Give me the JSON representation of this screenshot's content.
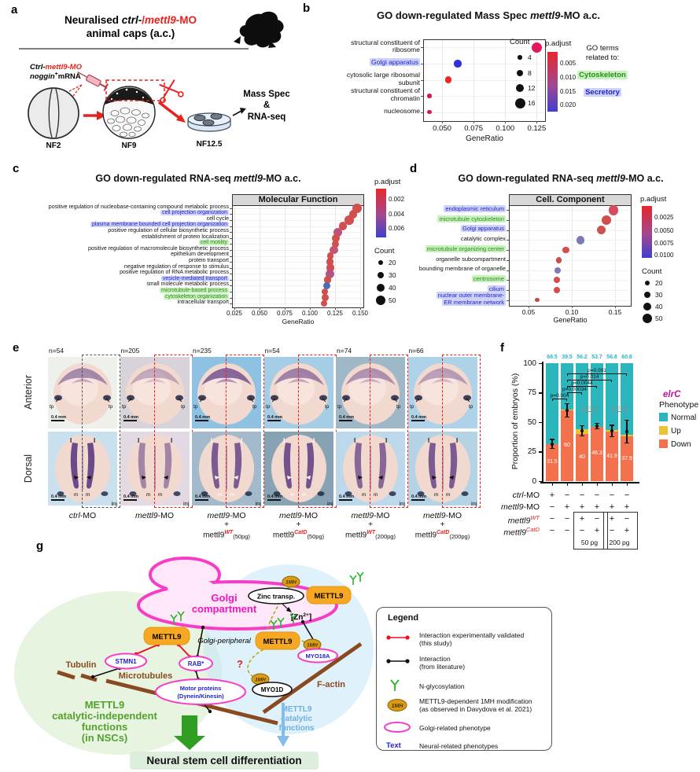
{
  "panel_labels": {
    "a": "a",
    "b": "b",
    "c": "c",
    "d": "d",
    "e": "e",
    "f": "f",
    "g": "g"
  },
  "panel_a": {
    "t1a": "Neuralised ",
    "t1b": "ctrl-",
    "t1c": "/",
    "t1d": "mettl9",
    "t1e": "-MO",
    "t2": "animal caps (a.c.)",
    "inj1": "Ctrl-",
    "inj2": "mettl9-MO",
    "nog1": "noggin",
    "nog_plus": "+",
    "nog2": "mRNA",
    "nf2": "NF2",
    "nf9": "NF9",
    "nf125": "NF12.5",
    "out1": "Mass Spec",
    "out2": "&",
    "out3": "RNA-seq"
  },
  "panel_e": {
    "row_labels": [
      "Anterior",
      "Dorsal"
    ],
    "scale_label": "0.4 mm",
    "inj_label": "inj",
    "tp_label": "tp",
    "l_label": "l",
    "m_label": "m",
    "columns": [
      {
        "n": "n=54",
        "line1_gene": "ctrl",
        "line1_rest": "-MO",
        "line2": "",
        "gene3": "",
        "sup3": "",
        "dose3": ""
      },
      {
        "n": "n=205",
        "line1_gene": "mettl9",
        "line1_rest": "-MO",
        "line2": "",
        "gene3": "",
        "sup3": "",
        "dose3": ""
      },
      {
        "n": "n=235",
        "line1_gene": "mettl9",
        "line1_rest": "-MO",
        "line2": "+",
        "gene3": "mettl9",
        "sup3": "WT",
        "dose3": "(50pg)"
      },
      {
        "n": "n=54",
        "line1_gene": "mettl9",
        "line1_rest": "-MO",
        "line2": "+",
        "gene3": "mettl9",
        "sup3": "CatD",
        "dose3": "(50pg)"
      },
      {
        "n": "n=74",
        "line1_gene": "mettl9",
        "line1_rest": "-MO",
        "line2": "+",
        "gene3": "mettl9",
        "sup3": "WT",
        "dose3": "(200pg)"
      },
      {
        "n": "n=66",
        "line1_gene": "mettl9",
        "line1_rest": "-MO",
        "line2": "+",
        "gene3": "mettl9",
        "sup3": "CatD",
        "dose3": "(200pg)"
      }
    ]
  },
  "panel_g": {
    "golgi1": "Golgi",
    "golgi2": "compartment",
    "zinc": "Zinc transp.",
    "zn_pre": "[Zn",
    "zn_sup": "2+",
    "zn_post": "]",
    "mettl9": "METTL9",
    "m1h": "1MH",
    "golgi_peripheral": "Golgi-peripheral",
    "stmn1": "STMN1",
    "rab": "RAB*",
    "motor1": "Motor proteins",
    "motor2": "(Dynein/Kinesin)",
    "myo18a": "MYO18A",
    "myo1d": "MYO1D",
    "tubulin": "Tubulin",
    "microtubules": "Microtubules",
    "factin": "F-actin",
    "q": "?",
    "green1": "METTL9",
    "green2": "catalytic-independent",
    "green3": "functions",
    "green4": "(in NSCs)",
    "blue1": "METTL9",
    "blue2": "catalytic",
    "blue3": "functions",
    "banner": "Neural stem cell differentiation"
  },
  "legend_box": {
    "title": "Legend",
    "item1a": "Interaction experimentally validated",
    "item1b": "(this study)",
    "item2a": "Interaction",
    "item2b": "(from literature)",
    "item3": "N-glycosylation",
    "item4a": "METTL9-dependent 1MH modification",
    "item4b": "(as observed in Davydova et al. 2021)",
    "item5": "Golgi-related phenotype",
    "item6_label": "Text",
    "item6": "Neural-related phenotypes"
  },
  "chart_data": [
    {
      "id": "b",
      "type": "scatter",
      "title_pre": "GO down-regulated Mass Spec ",
      "title_gene": "mettl9",
      "title_post": "-MO a.c.",
      "xlabel": "GeneRatio",
      "xticks": [
        "0.050",
        "0.075",
        "0.100",
        "0.125"
      ],
      "xtick_values": [
        0.05,
        0.075,
        0.1,
        0.125
      ],
      "xlim": [
        0.035,
        0.131
      ],
      "points": [
        {
          "lines": [
            "structural constituent of",
            "ribosome"
          ],
          "hl": "",
          "x": 0.125,
          "count": 16,
          "color": "#e0185e"
        },
        {
          "lines": [
            "Golgi apparatus"
          ],
          "hl": "blue",
          "x": 0.0625,
          "count": 10,
          "color": "#3232d8"
        },
        {
          "lines": [
            "cytosolic large ribosomal",
            "subunit"
          ],
          "hl": "",
          "x": 0.055,
          "count": 9,
          "color": "#ee2626"
        },
        {
          "lines": [
            "structural constituent of",
            "chromatin"
          ],
          "hl": "",
          "x": 0.04,
          "count": 4,
          "color": "#d6155f"
        },
        {
          "lines": [
            "nucleosome"
          ],
          "hl": "",
          "x": 0.04,
          "count": 4,
          "color": "#d6155f"
        }
      ],
      "count_legend": {
        "title": "Count",
        "values": [
          "4",
          "8",
          "12",
          "16"
        ],
        "sizes": [
          4,
          8,
          12,
          16
        ]
      },
      "p_legend": {
        "title": "p.adjust",
        "labels": [
          "0.005",
          "0.010",
          "0.015",
          "0.020"
        ]
      },
      "note": {
        "line1": "GO terms",
        "line2": "related to:",
        "badges": [
          {
            "label": "Cytoskeleton",
            "type": "green"
          },
          {
            "label": "Secretory",
            "type": "blue"
          }
        ]
      }
    },
    {
      "id": "c",
      "type": "scatter",
      "facet": "Molecular Function",
      "title_pre": "GO down-regulated RNA-seq ",
      "title_gene": "mettl9",
      "title_post": "-MO a.c.",
      "xlabel": "GeneRatio",
      "xticks": [
        "0.025",
        "0.050",
        "0.075",
        "0.100",
        "0.125",
        "0.150"
      ],
      "xtick_values": [
        0.025,
        0.05,
        0.075,
        0.1,
        0.125,
        0.15
      ],
      "xlim": [
        0.022,
        0.155
      ],
      "points": [
        {
          "lines": [
            "positive regulation of nucleobase-containing compound metabolic process"
          ],
          "hl": "",
          "x": 0.147,
          "count": 50,
          "color": "#d14f4f"
        },
        {
          "lines": [
            "cell projection organization"
          ],
          "hl": "blue",
          "x": 0.143,
          "count": 42,
          "color": "#d14f4f"
        },
        {
          "lines": [
            "cell cycle"
          ],
          "hl": "",
          "x": 0.139,
          "count": 45,
          "color": "#d14f4f"
        },
        {
          "lines": [
            "plasma membrane bounded cell projection organization"
          ],
          "hl": "blue",
          "x": 0.133,
          "count": 40,
          "color": "#d14f4f"
        },
        {
          "lines": [
            "positive regulation of cellular biosynthetic process"
          ],
          "hl": "",
          "x": 0.128,
          "count": 42,
          "color": "#bd5178"
        },
        {
          "lines": [
            "establishment of protein localization"
          ],
          "hl": "",
          "x": 0.126,
          "count": 36,
          "color": "#d14f4f"
        },
        {
          "lines": [
            "cell motility"
          ],
          "hl": "green",
          "x": 0.1255,
          "count": 32,
          "color": "#d14f4f"
        },
        {
          "lines": [
            "positive regulation of macromolecule biosynthetic process"
          ],
          "hl": "",
          "x": 0.124,
          "count": 40,
          "color": "#c35573"
        },
        {
          "lines": [
            "epithelium development"
          ],
          "hl": "",
          "x": 0.1205,
          "count": 30,
          "color": "#d14f4f"
        },
        {
          "lines": [
            "protein transport"
          ],
          "hl": "",
          "x": 0.12,
          "count": 34,
          "color": "#d14f4f"
        },
        {
          "lines": [
            "negative regulation of response to stimulus"
          ],
          "hl": "",
          "x": 0.1205,
          "count": 40,
          "color": "#d14f4f"
        },
        {
          "lines": [
            "positive regulation of RNA metabolic process"
          ],
          "hl": "",
          "x": 0.12,
          "count": 42,
          "color": "#b15587"
        },
        {
          "lines": [
            "vesicle-mediated transport"
          ],
          "hl": "blue",
          "x": 0.1175,
          "count": 36,
          "color": "#d14f4f"
        },
        {
          "lines": [
            "small molecule metabolic process"
          ],
          "hl": "",
          "x": 0.117,
          "count": 34,
          "color": "#4a6db8"
        },
        {
          "lines": [
            "microtubule-based process"
          ],
          "hl": "green",
          "x": 0.115,
          "count": 26,
          "color": "#d14f4f"
        },
        {
          "lines": [
            "cytoskeleton organization"
          ],
          "hl": "green",
          "x": 0.115,
          "count": 32,
          "color": "#d14f4f"
        },
        {
          "lines": [
            "intracellular transport"
          ],
          "hl": "",
          "x": 0.114,
          "count": 30,
          "color": "#d14f4f"
        }
      ],
      "count_legend": {
        "title": "Count",
        "values": [
          "20",
          "30",
          "40",
          "50"
        ],
        "sizes": [
          20,
          30,
          40,
          50
        ]
      },
      "p_legend": {
        "title": "p.adjust",
        "labels": [
          "0.002",
          "0.004",
          "0.006"
        ]
      }
    },
    {
      "id": "d",
      "type": "scatter",
      "facet": "Cell. Component",
      "title_pre": "GO down-regulated RNA-seq ",
      "title_gene": "mettl9",
      "title_post": "-MO a.c.",
      "xlabel": "GeneRatio",
      "xticks": [
        "0.05",
        "0.10",
        "0.15"
      ],
      "xtick_values": [
        0.05,
        0.1,
        0.15
      ],
      "xlim": [
        0.03,
        0.165
      ],
      "points": [
        {
          "lines": [
            "endoplasmic reticulum"
          ],
          "hl": "blue",
          "x": 0.148,
          "count": 50,
          "color": "#d84a5e"
        },
        {
          "lines": [
            "microtubule cytoskeleton"
          ],
          "hl": "green",
          "x": 0.14,
          "count": 46,
          "color": "#d14f4f"
        },
        {
          "lines": [
            "Golgi apparatus"
          ],
          "hl": "blue",
          "x": 0.134,
          "count": 44,
          "color": "#d05050"
        },
        {
          "lines": [
            "catalytic complex"
          ],
          "hl": "",
          "x": 0.11,
          "count": 42,
          "color": "#7b79b8"
        },
        {
          "lines": [
            "microtubule organizing center"
          ],
          "hl": "green",
          "x": 0.093,
          "count": 30,
          "color": "#d14f4f"
        },
        {
          "lines": [
            "organelle subcompartment"
          ],
          "hl": "",
          "x": 0.085,
          "count": 26,
          "color": "#cc4b4b"
        },
        {
          "lines": [
            "bounding membrane of organelle"
          ],
          "hl": "",
          "x": 0.084,
          "count": 28,
          "color": "#7b79b8"
        },
        {
          "lines": [
            "centrosome"
          ],
          "hl": "green",
          "x": 0.083,
          "count": 26,
          "color": "#d14f4f"
        },
        {
          "lines": [
            "cilium"
          ],
          "hl": "blue",
          "x": 0.083,
          "count": 26,
          "color": "#d14f4f"
        },
        {
          "lines": [
            "nuclear outer membrane-",
            "ER membrane network"
          ],
          "hl": "blue",
          "x": 0.06,
          "count": 16,
          "color": "#c74848"
        }
      ],
      "count_legend": {
        "title": "Count",
        "values": [
          "20",
          "30",
          "40",
          "50"
        ],
        "sizes": [
          20,
          30,
          40,
          50
        ]
      },
      "p_legend": {
        "title": "p.adjust",
        "labels": [
          "0.0025",
          "0.0050",
          "0.0075",
          "0.0100"
        ]
      }
    },
    {
      "id": "f",
      "type": "stacked-bar",
      "legend_gene": "elrC",
      "legend_title": "Phenotype",
      "ylabel": "Proportion of embryos (%)",
      "yticks": [
        "0",
        "25",
        "50",
        "75",
        "100"
      ],
      "series": [
        {
          "name": "Normal",
          "color": "#2bb5bd",
          "values": [
            68.5,
            39.5,
            56.2,
            53.7,
            56.8,
            60.8
          ]
        },
        {
          "name": "Up",
          "color": "#eac435",
          "values": [
            0,
            0.5,
            3.8,
            0,
            1.3,
            1.3
          ]
        },
        {
          "name": "Down",
          "color": "#f4714e",
          "values": [
            31.5,
            60,
            40,
            46.3,
            41.9,
            37.9
          ]
        }
      ],
      "top_labels": [
        "68.5",
        "39.5",
        "56.2",
        "53.7",
        "56.8",
        "60.8"
      ],
      "down_labels": [
        "31.5",
        "60",
        "40",
        "46.3",
        "41.9",
        "37.9"
      ],
      "error_center": [
        31.5,
        60,
        42.5,
        46.5,
        42.5,
        42
      ],
      "error_half": [
        4,
        6,
        4.5,
        2.5,
        5,
        10
      ],
      "pvalues": [
        {
          "from": 0,
          "to": 1,
          "label": "p=0.004",
          "gray": false
        },
        {
          "from": 1,
          "to": 2,
          "label": "p=0.00034",
          "gray": false
        },
        {
          "from": 1,
          "to": 3,
          "label": "p=0.0044",
          "gray": false
        },
        {
          "from": 1,
          "to": 4,
          "label": "p=0.014",
          "gray": false
        },
        {
          "from": 1,
          "to": 5,
          "label": "p=0.091",
          "gray": false
        },
        {
          "from": 2,
          "to": 3,
          "label": "p=0.22",
          "gray": true
        },
        {
          "from": 4,
          "to": 5,
          "label": "p=0.89",
          "gray": true
        }
      ],
      "matrix": {
        "rows": [
          {
            "gene": "ctrl",
            "rest": "-MO",
            "sup": "",
            "values": [
              "+",
              "−",
              "−",
              "−",
              "−",
              "−"
            ]
          },
          {
            "gene": "mettl9",
            "rest": "-MO",
            "sup": "",
            "values": [
              "−",
              "+",
              "+",
              "+",
              "+",
              "+"
            ]
          },
          {
            "gene": "mettl9",
            "rest": "",
            "sup": "WT",
            "values": [
              "−",
              "−",
              "+",
              "−",
              "+",
              "−"
            ]
          },
          {
            "gene": "mettl9",
            "rest": "",
            "sup": "CatD",
            "values": [
              "−",
              "−",
              "−",
              "+",
              "−",
              "+"
            ]
          }
        ],
        "boxes": [
          {
            "label": "50 pg",
            "cols": [
              2,
              3
            ]
          },
          {
            "label": "200 pg",
            "cols": [
              4,
              5
            ]
          }
        ]
      },
      "legend_items": [
        {
          "label": "Normal",
          "color": "#2bb5bd"
        },
        {
          "label": "Up",
          "color": "#eac435"
        },
        {
          "label": "Down",
          "color": "#f4714e"
        }
      ]
    }
  ]
}
